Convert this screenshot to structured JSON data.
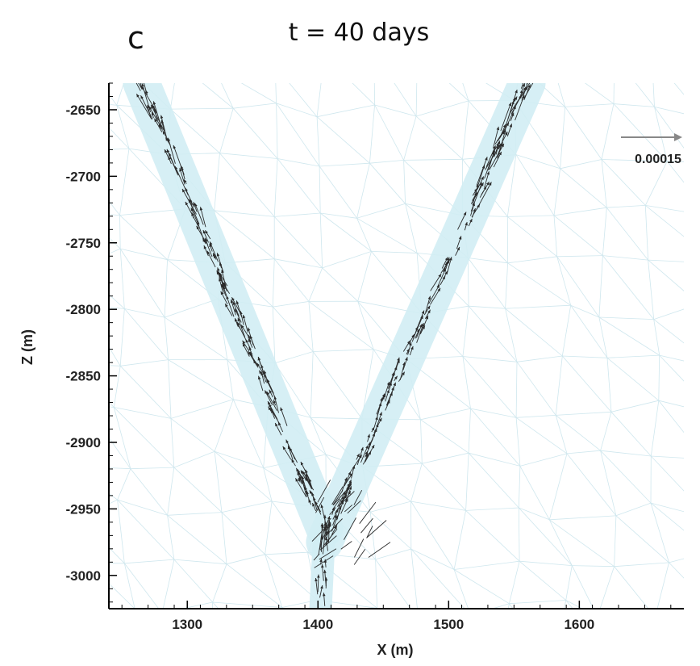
{
  "panel_label": "c",
  "chart_data": {
    "type": "scatter",
    "subtype": "vector-field",
    "title": "t = 40 days",
    "xlabel": "X (m)",
    "ylabel": "Z (m)",
    "xlim": [
      1240,
      1680
    ],
    "ylim": [
      -3025,
      -2630
    ],
    "x_ticks": [
      1300,
      1400,
      1500,
      1600
    ],
    "y_ticks": [
      -2650,
      -2700,
      -2750,
      -2800,
      -2850,
      -2900,
      -2950,
      -3000
    ],
    "grid": false,
    "reference_vector": {
      "label": "0.00015",
      "magnitude": 0.00015
    },
    "fractures": [
      {
        "name": "left",
        "points": [
          [
            1265,
            -2630
          ],
          [
            1405,
            -2965
          ]
        ]
      },
      {
        "name": "right",
        "points": [
          [
            1560,
            -2630
          ],
          [
            1405,
            -2975
          ]
        ]
      },
      {
        "name": "stem",
        "points": [
          [
            1405,
            -2965
          ],
          [
            1402,
            -3025
          ]
        ]
      }
    ],
    "colors": {
      "mesh": "#cfe7ee",
      "fracture_zone": "#d2eef4",
      "vectors": "#2a2a2a",
      "reference_arrow": "#888888",
      "axes": "#000000"
    }
  }
}
